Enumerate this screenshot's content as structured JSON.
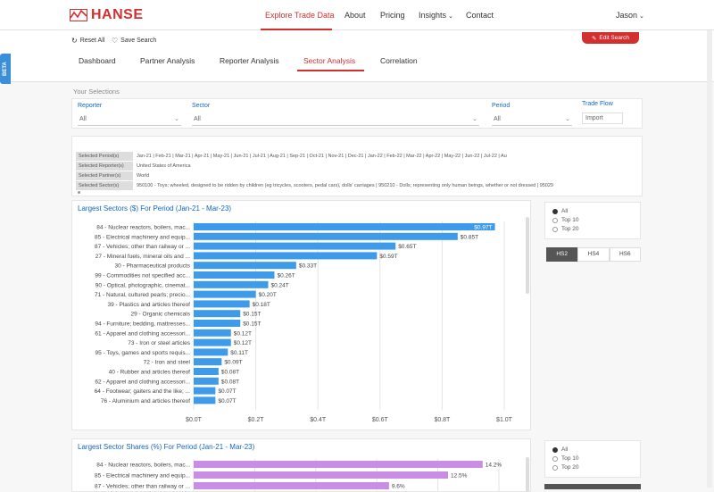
{
  "brand": {
    "name": "HANSE"
  },
  "nav": {
    "items": [
      "Explore Trade Data",
      "About",
      "Pricing",
      "Insights",
      "Contact"
    ],
    "user": "Jason"
  },
  "actions": {
    "reset": "Reset All",
    "save": "Save Search",
    "edit": "Edit Search"
  },
  "beta": "BETA",
  "tabs": [
    "Dashboard",
    "Partner Analysis",
    "Reporter Analysis",
    "Sector Analysis",
    "Correlation"
  ],
  "selections": {
    "heading": "Your Selections",
    "reporter": {
      "label": "Reporter",
      "value": "All"
    },
    "sector": {
      "label": "Sector",
      "value": "All"
    },
    "period": {
      "label": "Period",
      "value": "All"
    },
    "trade_flow": {
      "label": "Trade Flow",
      "value": "Import"
    }
  },
  "selected": [
    {
      "key": "Selected Period(s)",
      "value": "Jan-21 | Feb-21 | Mar-21 | Apr-21 | May-21 | Jun-21 | Jul-21 | Aug-21 | Sep-21 | Oct-21 | Nov-21 | Dec-21 | Jan-22 | Feb-22 | Mar-22 | Apr-22 | May-22 | Jun-22 | Jul-22 | Au"
    },
    {
      "key": "Selected Reporter(s)",
      "value": "United States of America"
    },
    {
      "key": "Selected Partner(s)",
      "value": "World"
    },
    {
      "key": "Selected Sector(s)",
      "value": "950100 - Toys; wheeled, designed to be ridden by children (eg tricycles, scooters, pedal cars), dolls' carriages  |  950210 - Dolls; representing only human beings, whether or not dressed  |  95029"
    }
  ],
  "chart_data": [
    {
      "type": "bar",
      "title": "Largest Sectors ($) For Period (Jan-21 - Mar-23)",
      "orientation": "horizontal",
      "categories": [
        "84 - Nuclear reactors, boilers, mac...",
        "85 - Electrical machinery and equip...",
        "87 - Vehicles; other than railway or ...",
        "27 - Mineral fuels, mineral oils and ...",
        "30 - Pharmaceutical products",
        "99 - Commodities not specified acc...",
        "90 - Optical, photographic, cinemat...",
        "71 - Natural, cultured pearls; precio...",
        "39 - Plastics and articles thereof",
        "29 - Organic chemicals",
        "94 - Furniture; bedding, mattresses...",
        "61 - Apparel and clothing accessori...",
        "73 - Iron or steel articles",
        "95 - Toys, games and sports requis...",
        "72 - Iron and steel",
        "40 - Rubber and articles thereof",
        "62 - Apparel and clothing accessori...",
        "64 - Footwear; gaiters and the like; ...",
        "76 - Aluminium and articles thereof"
      ],
      "values": [
        0.97,
        0.85,
        0.65,
        0.59,
        0.33,
        0.26,
        0.24,
        0.2,
        0.18,
        0.15,
        0.15,
        0.12,
        0.12,
        0.11,
        0.09,
        0.08,
        0.08,
        0.07,
        0.07
      ],
      "labels": [
        "$0.97T",
        "$0.85T",
        "$0.65T",
        "$0.59T",
        "$0.33T",
        "$0.26T",
        "$0.24T",
        "$0.20T",
        "$0.18T",
        "$0.15T",
        "$0.15T",
        "$0.12T",
        "$0.12T",
        "$0.11T",
        "$0.09T",
        "$0.08T",
        "$0.08T",
        "$0.07T",
        "$0.07T"
      ],
      "xticks": [
        "$0.0T",
        "$0.2T",
        "$0.4T",
        "$0.6T",
        "$0.8T",
        "$1.0T"
      ],
      "xlim": [
        0,
        1.0
      ],
      "color": "#3d9be9",
      "grid": true
    },
    {
      "type": "bar",
      "title": "Largest Sector Shares (%) For Period (Jan-21 - Mar-23)",
      "orientation": "horizontal",
      "categories": [
        "84 - Nuclear reactors, boilers, mac...",
        "85 - Electrical machinery and equip...",
        "87 - Vehicles; other than railway or ..."
      ],
      "values": [
        14.2,
        12.5,
        9.6
      ],
      "labels": [
        "14.2%",
        "12.5%",
        "9.6%"
      ],
      "xlim": [
        0,
        15
      ],
      "color": "#c98de6",
      "grid": true
    }
  ],
  "options1": {
    "radios": [
      "All",
      "Top 10",
      "Top 20"
    ],
    "hs": [
      "HS2",
      "HS4",
      "HS6"
    ]
  },
  "options2": {
    "radios": [
      "All",
      "Top 10",
      "Top 20"
    ]
  }
}
